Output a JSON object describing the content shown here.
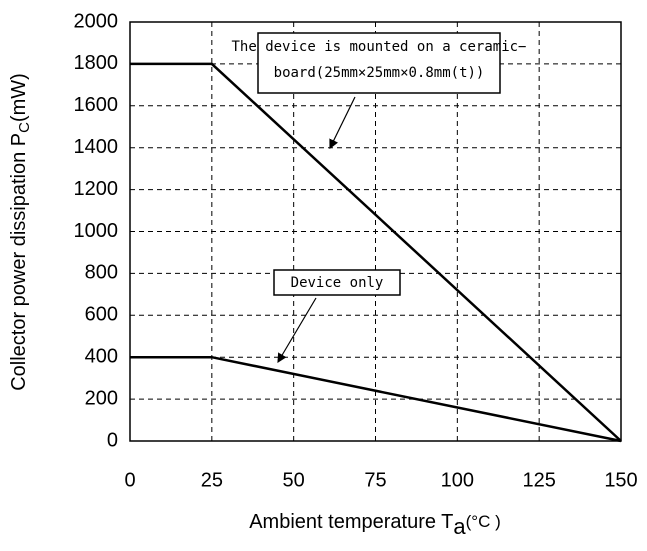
{
  "chart_data": {
    "type": "line",
    "xlabel": {
      "text": "Ambient temperature T",
      "sub": "a",
      "suffix": "(°C )"
    },
    "ylabel": {
      "text": "Collector power dissipation P",
      "sub": "C",
      "suffix": "(mW)"
    },
    "x": [
      0,
      25,
      150
    ],
    "series": [
      {
        "color": "#000000",
        "values": [
          1800,
          1800,
          0
        ]
      },
      {
        "color": "#000000",
        "values": [
          400,
          400,
          0
        ]
      }
    ],
    "xlim": [
      0,
      150
    ],
    "xticks": [
      0,
      25,
      50,
      75,
      100,
      125,
      150
    ],
    "ylim": [
      0,
      2000
    ],
    "yticks": [
      0,
      200,
      400,
      600,
      800,
      1000,
      1200,
      1400,
      1600,
      1800,
      2000
    ],
    "grid": true,
    "annotations": [
      {
        "lines": [
          "The device is mounted on a ceramic−",
          "board(25mm×25mm×0.8mm(t))"
        ]
      },
      {
        "lines": [
          "Device only"
        ]
      }
    ]
  }
}
